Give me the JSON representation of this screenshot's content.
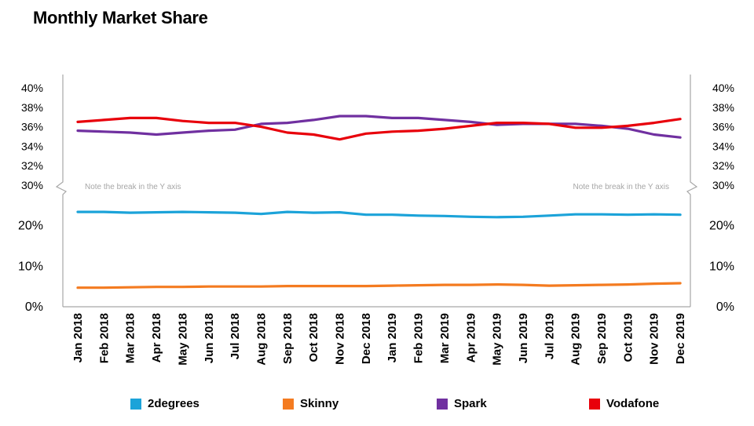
{
  "title": "Monthly Market Share",
  "chart_data": {
    "type": "line",
    "title": "Monthly Market Share",
    "xlabel": "",
    "ylabel": "",
    "categories": [
      "Jan 2018",
      "Feb 2018",
      "Mar 2018",
      "Apr 2018",
      "May 2018",
      "Jun 2018",
      "Jul 2018",
      "Aug 2018",
      "Sep 2018",
      "Oct 2018",
      "Nov 2018",
      "Dec 2018",
      "Jan 2019",
      "Feb 2019",
      "Mar 2019",
      "Apr 2019",
      "May 2019",
      "Jun 2019",
      "Jul 2019",
      "Aug 2019",
      "Sep 2019",
      "Oct 2019",
      "Nov 2019",
      "Dec 2019"
    ],
    "upper_axis": {
      "ylim": [
        30,
        40
      ],
      "ticks": [
        "30%",
        "32%",
        "34%",
        "36%",
        "38%",
        "40%"
      ]
    },
    "lower_axis": {
      "ylim": [
        0,
        30
      ],
      "ticks": [
        "0%",
        "10%",
        "20%"
      ]
    },
    "axis_break_note": "Note the break in the Y axis",
    "series": [
      {
        "name": "2degrees",
        "color": "#1CA3D9",
        "values": [
          23.4,
          23.4,
          23.2,
          23.3,
          23.4,
          23.3,
          23.2,
          22.9,
          23.4,
          23.2,
          23.3,
          22.7,
          22.7,
          22.5,
          22.4,
          22.2,
          22.1,
          22.2,
          22.5,
          22.8,
          22.8,
          22.7,
          22.8,
          22.7
        ]
      },
      {
        "name": "Skinny",
        "color": "#F47B20",
        "values": [
          4.7,
          4.7,
          4.8,
          4.9,
          4.9,
          5.0,
          5.0,
          5.0,
          5.1,
          5.1,
          5.1,
          5.1,
          5.2,
          5.3,
          5.4,
          5.4,
          5.5,
          5.4,
          5.2,
          5.3,
          5.4,
          5.5,
          5.7,
          5.8
        ]
      },
      {
        "name": "Spark",
        "color": "#7030A0",
        "values": [
          35.6,
          35.5,
          35.4,
          35.2,
          35.4,
          35.6,
          35.7,
          36.3,
          36.4,
          36.7,
          37.1,
          37.1,
          36.9,
          36.9,
          36.7,
          36.5,
          36.2,
          36.3,
          36.3,
          36.3,
          36.1,
          35.8,
          35.2,
          34.9
        ]
      },
      {
        "name": "Vodafone",
        "color": "#E8000B",
        "values": [
          36.5,
          36.7,
          36.9,
          36.9,
          36.6,
          36.4,
          36.4,
          36.0,
          35.4,
          35.2,
          34.7,
          35.3,
          35.5,
          35.6,
          35.8,
          36.1,
          36.4,
          36.4,
          36.3,
          35.9,
          35.9,
          36.1,
          36.4,
          36.8
        ]
      }
    ],
    "legend_position": "bottom",
    "grid": false
  }
}
